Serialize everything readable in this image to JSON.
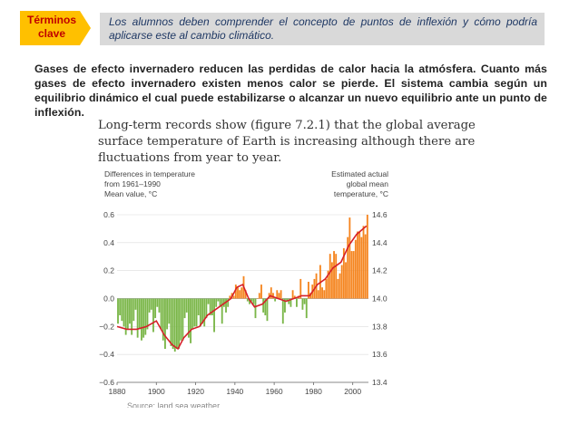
{
  "header": {
    "terms_label": "Términos clave",
    "note": "Los alumnos deben comprender el concepto de puntos de inflexión y cómo podría aplicarse  este al cambio climático."
  },
  "body_text": "Gases de efecto invernadero reducen las perdidas de calor  hacia la atmósfera. Cuanto más gases de efecto invernadero existen menos calor se pierde. El sistema cambia según un equilibrio dinámico el cual puede estabilizarse o alcanzar un nuevo equilibrio ante un punto de inflexión.",
  "figure": {
    "caption": "Long-term records show (figure 7.2.1) that the global average surface temperature of Earth is increasing although there are fluctuations from year to year.",
    "source_fragment": "Source: land sea weather research"
  },
  "colors": {
    "terms_fill": "#ffc000",
    "terms_text": "#c00000",
    "note_bg": "#d9d9d9",
    "positive_bar": "#f5851f",
    "negative_bar": "#7ab648",
    "trend_line": "#d6202a"
  },
  "chart_data": {
    "type": "bar",
    "left_axis_label": [
      "Differences in temperature",
      "from 1961–1990",
      "Mean value, °C"
    ],
    "right_axis_label": [
      "Estimated actual",
      "global mean",
      "temperature, °C"
    ],
    "x_ticks": [
      1880,
      1900,
      1920,
      1940,
      1960,
      1980,
      2000
    ],
    "y_ticks": [
      0.6,
      0.4,
      0.2,
      0.0,
      -0.2,
      -0.4,
      -0.6
    ],
    "y_tick_labels": [
      "0.6",
      "0.4",
      "0.2",
      "0.0",
      "−0.2",
      "−0.4",
      "−0.6"
    ],
    "right_ticks": [
      14.6,
      14.4,
      14.2,
      14.0,
      13.8,
      13.6,
      13.4
    ],
    "ylim": [
      -0.6,
      0.6
    ],
    "xlim": [
      1880,
      2008
    ],
    "right_offset": 14.0,
    "series": [
      {
        "x": [
          1880,
          1881,
          1882,
          1883,
          1884,
          1885,
          1886,
          1887,
          1888,
          1889,
          1890,
          1891,
          1892,
          1893,
          1894,
          1895,
          1896,
          1897,
          1898,
          1899,
          1900,
          1901,
          1902,
          1903,
          1904,
          1905,
          1906,
          1907,
          1908,
          1909,
          1910,
          1911,
          1912,
          1913,
          1914,
          1915,
          1916,
          1917,
          1918,
          1919,
          1920,
          1921,
          1922,
          1923,
          1924,
          1925,
          1926,
          1927,
          1928,
          1929,
          1930,
          1931,
          1932,
          1933,
          1934,
          1935,
          1936,
          1937,
          1938,
          1939,
          1940,
          1941,
          1942,
          1943,
          1944,
          1945,
          1946,
          1947,
          1948,
          1949,
          1950,
          1951,
          1952,
          1953,
          1954,
          1955,
          1956,
          1957,
          1958,
          1959,
          1960,
          1961,
          1962,
          1963,
          1964,
          1965,
          1966,
          1967,
          1968,
          1969,
          1970,
          1971,
          1972,
          1973,
          1974,
          1975,
          1976,
          1977,
          1978,
          1979,
          1980,
          1981,
          1982,
          1983,
          1984,
          1985,
          1986,
          1987,
          1988,
          1989,
          1990,
          1991,
          1992,
          1993,
          1994,
          1995,
          1996,
          1997,
          1998,
          1999,
          2000,
          2001,
          2002,
          2003,
          2004,
          2005,
          2006,
          2007
        ],
        "values": [
          -0.18,
          -0.12,
          -0.16,
          -0.2,
          -0.26,
          -0.22,
          -0.18,
          -0.26,
          -0.16,
          -0.08,
          -0.28,
          -0.22,
          -0.3,
          -0.28,
          -0.26,
          -0.22,
          -0.1,
          -0.08,
          -0.24,
          -0.14,
          -0.06,
          -0.1,
          -0.22,
          -0.3,
          -0.36,
          -0.22,
          -0.18,
          -0.34,
          -0.36,
          -0.38,
          -0.36,
          -0.36,
          -0.3,
          -0.3,
          -0.14,
          -0.1,
          -0.28,
          -0.32,
          -0.22,
          -0.2,
          -0.2,
          -0.12,
          -0.2,
          -0.18,
          -0.2,
          -0.14,
          -0.04,
          -0.12,
          -0.12,
          -0.24,
          -0.06,
          -0.02,
          -0.06,
          -0.18,
          -0.06,
          -0.1,
          -0.06,
          0.02,
          0.04,
          0.02,
          0.1,
          0.08,
          0.06,
          0.08,
          0.16,
          0.06,
          -0.02,
          -0.04,
          -0.02,
          -0.04,
          -0.14,
          0.0,
          0.04,
          0.1,
          -0.1,
          -0.12,
          -0.16,
          0.04,
          0.08,
          0.04,
          -0.02,
          0.06,
          0.04,
          0.06,
          -0.18,
          -0.1,
          -0.02,
          -0.04,
          -0.06,
          0.06,
          0.02,
          -0.06,
          0.02,
          0.14,
          -0.08,
          -0.04,
          -0.14,
          0.12,
          0.04,
          0.1,
          0.14,
          0.18,
          0.06,
          0.24,
          0.08,
          0.06,
          0.14,
          0.2,
          0.32,
          0.26,
          0.34,
          0.32,
          0.14,
          0.18,
          0.24,
          0.36,
          0.26,
          0.44,
          0.58,
          0.34,
          0.34,
          0.42,
          0.48,
          0.48,
          0.44,
          0.52,
          0.46,
          0.6
        ]
      },
      {
        "name": "trend",
        "x": [
          1880,
          1885,
          1890,
          1895,
          1900,
          1904,
          1908,
          1911,
          1914,
          1918,
          1922,
          1926,
          1930,
          1934,
          1938,
          1941,
          1944,
          1947,
          1950,
          1954,
          1958,
          1962,
          1966,
          1970,
          1974,
          1978,
          1982,
          1986,
          1990,
          1994,
          1998,
          2002,
          2007
        ],
        "values": [
          -0.2,
          -0.22,
          -0.22,
          -0.2,
          -0.16,
          -0.26,
          -0.33,
          -0.36,
          -0.28,
          -0.22,
          -0.2,
          -0.12,
          -0.08,
          -0.04,
          0.0,
          0.08,
          0.1,
          0.0,
          -0.06,
          -0.04,
          0.02,
          0.0,
          -0.02,
          0.0,
          0.02,
          0.02,
          0.1,
          0.14,
          0.22,
          0.26,
          0.38,
          0.46,
          0.52
        ]
      }
    ]
  }
}
